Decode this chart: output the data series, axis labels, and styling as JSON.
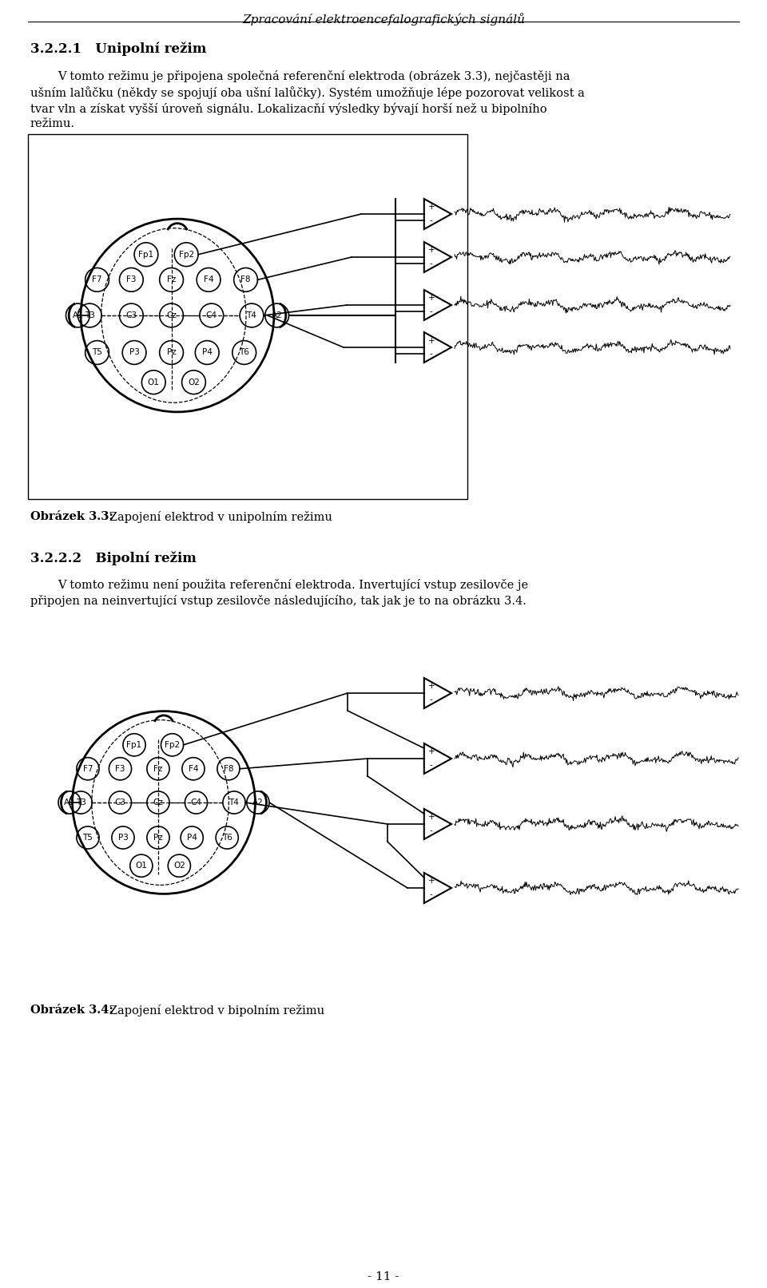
{
  "page_title": "Zpracování elektroencefalografických signálů",
  "section_321_title": "3.2.2.1   Unipolní režim",
  "section_321_text1": "V tomto režimu je připojena společná referenční elektroda (obrázek 3.3), nejčastěji na",
  "section_321_text2": "ušním lalůčku (někdy se spojují oba ušní lalůčky). Systém umožňuje lépe pozorovat velikost a",
  "section_321_text3": "tvar vln a získat vyšší úroveň signálu. Lokalizacňí výsledky bývají horší než u bipolního",
  "section_321_text4": "režimu.",
  "fig33_caption_bold": "Obrázek 3.3:",
  "fig33_caption_rest": "   Zapojení elektrod v unipolním režimu",
  "section_322_title": "3.2.2.2   Bipolní režim",
  "section_322_text1": "V tomto režimu není použita referenční elektroda. Invertující vstup zesilovče je",
  "section_322_text2": "připojen na neinvertující vstup zesilovče následujícího, tak jak je to na obrázku 3.4.",
  "fig34_caption_bold": "Obrázek 3.4:",
  "fig34_caption_rest": "   Zapojení elektrod v bipolním režimu",
  "page_number": "- 11 -",
  "bg_color": "#ffffff",
  "text_color": "#000000"
}
